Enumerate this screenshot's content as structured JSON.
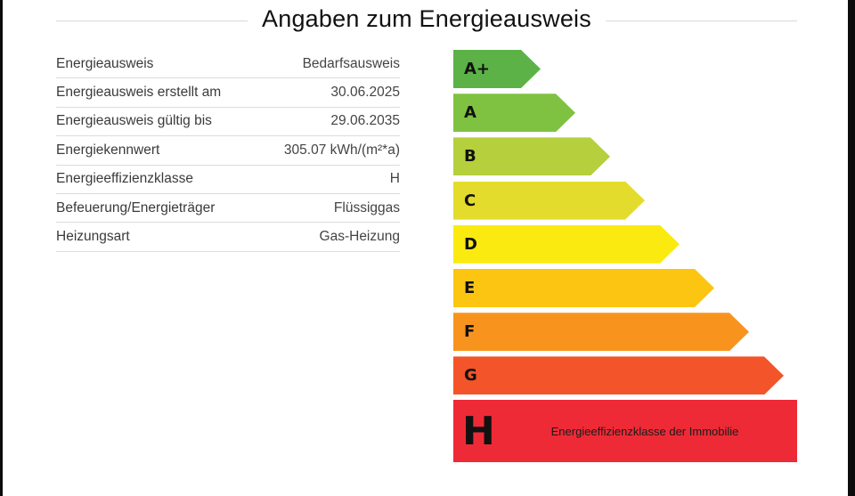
{
  "header": {
    "title": "Angaben zum Energieausweis"
  },
  "details": [
    {
      "label": "Energieausweis",
      "value": "Bedarfsausweis"
    },
    {
      "label": "Energieausweis erstellt am",
      "value": "30.06.2025"
    },
    {
      "label": "Energieausweis gültig bis",
      "value": "29.06.2035"
    },
    {
      "label": "Energiekennwert",
      "value": "305.07 kWh/(m²*a)"
    },
    {
      "label": "Energieeffizienzklasse",
      "value": "H"
    },
    {
      "label": "Befeuerung/Energieträger",
      "value": "Flüssiggas"
    },
    {
      "label": "Heizungsart",
      "value": "Gas-Heizung"
    }
  ],
  "scale": {
    "classes": [
      {
        "label": "A+",
        "color": "#5cb247"
      },
      {
        "label": "A",
        "color": "#7fc241"
      },
      {
        "label": "B",
        "color": "#b5cf3d"
      },
      {
        "label": "C",
        "color": "#e4dc2d"
      },
      {
        "label": "D",
        "color": "#fbea10"
      },
      {
        "label": "E",
        "color": "#fbc512"
      },
      {
        "label": "F",
        "color": "#f8941e"
      },
      {
        "label": "G",
        "color": "#f3542a"
      }
    ],
    "current": {
      "label": "H",
      "caption": "Energieeffizienzklasse der Immobilie",
      "color": "#ee2a36"
    }
  }
}
